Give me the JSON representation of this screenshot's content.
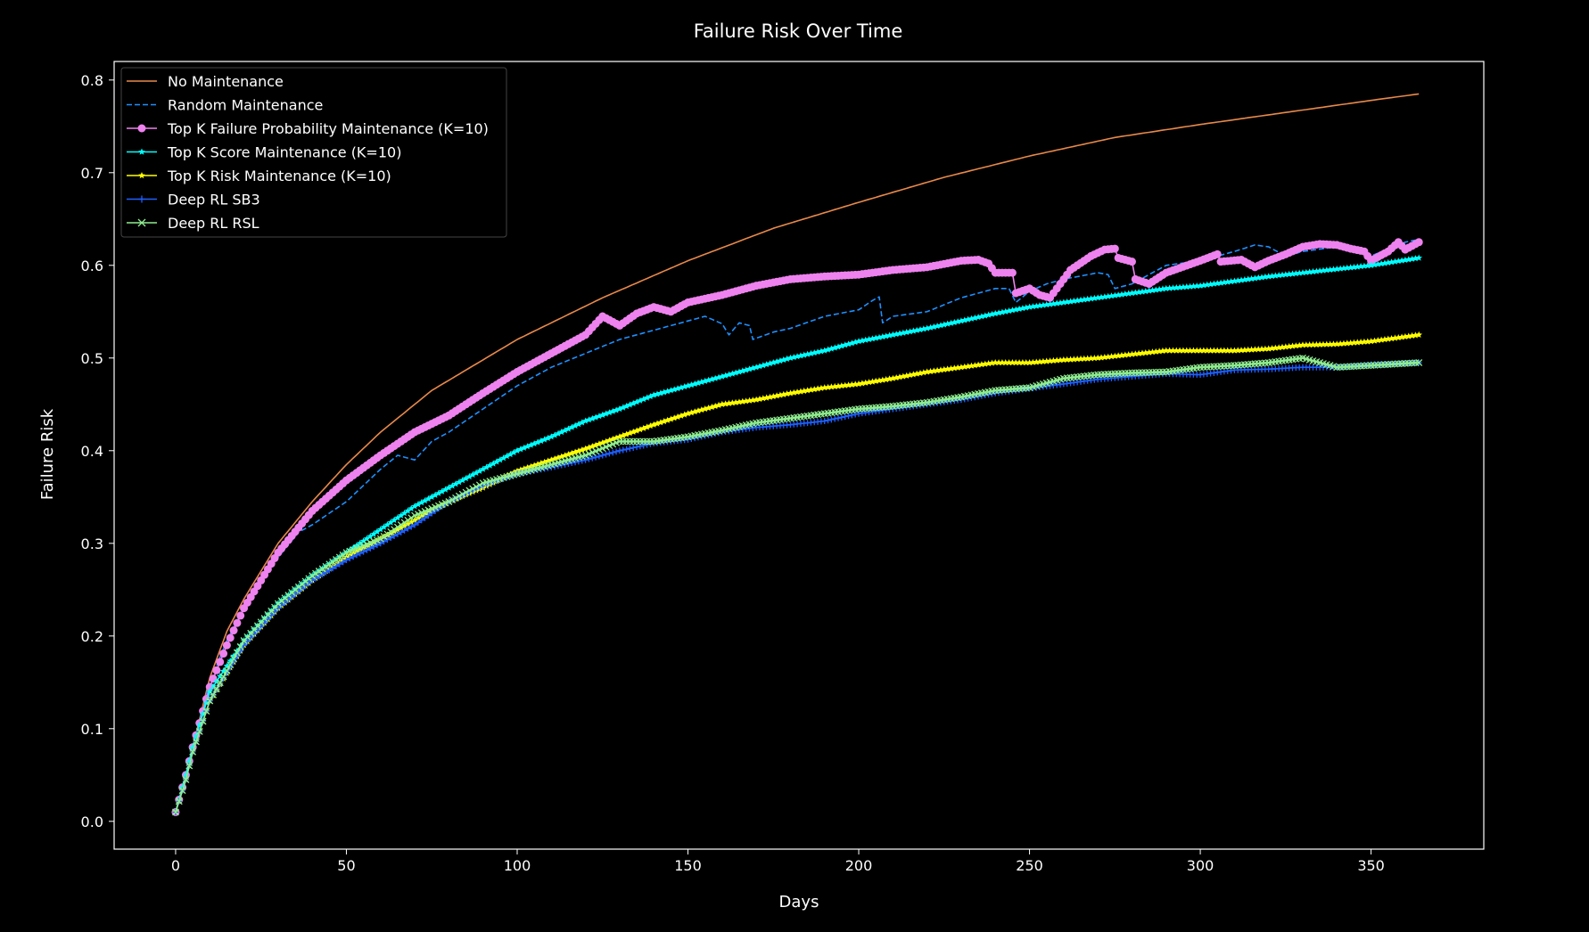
{
  "chart_data": {
    "type": "line",
    "title": "Failure Risk Over Time",
    "xlabel": "Days",
    "ylabel": "Failure Risk",
    "xlim": [
      -18,
      383
    ],
    "ylim": [
      -0.03,
      0.82
    ],
    "xticks": [
      0,
      50,
      100,
      150,
      200,
      250,
      300,
      350
    ],
    "yticks": [
      0.0,
      0.1,
      0.2,
      0.3,
      0.4,
      0.5,
      0.6,
      0.7,
      0.8
    ],
    "grid": false,
    "legend_position": "top-left",
    "background": "#000000",
    "series": [
      {
        "name": "No Maintenance",
        "color": "#e8894a",
        "style": "solid",
        "marker": "none",
        "points": [
          [
            0,
            0.01
          ],
          [
            3,
            0.05
          ],
          [
            5,
            0.08
          ],
          [
            10,
            0.155
          ],
          [
            15,
            0.205
          ],
          [
            20,
            0.24
          ],
          [
            30,
            0.3
          ],
          [
            40,
            0.345
          ],
          [
            50,
            0.385
          ],
          [
            60,
            0.42
          ],
          [
            75,
            0.465
          ],
          [
            100,
            0.52
          ],
          [
            125,
            0.565
          ],
          [
            150,
            0.605
          ],
          [
            175,
            0.64
          ],
          [
            200,
            0.668
          ],
          [
            225,
            0.695
          ],
          [
            250,
            0.718
          ],
          [
            275,
            0.738
          ],
          [
            300,
            0.752
          ],
          [
            325,
            0.765
          ],
          [
            350,
            0.778
          ],
          [
            364,
            0.785
          ]
        ]
      },
      {
        "name": "Random Maintenance",
        "color": "#1e90ff",
        "style": "dashed",
        "marker": "none",
        "points": [
          [
            0,
            0.01
          ],
          [
            3,
            0.05
          ],
          [
            5,
            0.08
          ],
          [
            10,
            0.15
          ],
          [
            15,
            0.195
          ],
          [
            20,
            0.23
          ],
          [
            30,
            0.285
          ],
          [
            36,
            0.312
          ],
          [
            40,
            0.32
          ],
          [
            50,
            0.345
          ],
          [
            60,
            0.38
          ],
          [
            65,
            0.395
          ],
          [
            70,
            0.39
          ],
          [
            75,
            0.41
          ],
          [
            80,
            0.42
          ],
          [
            90,
            0.445
          ],
          [
            100,
            0.47
          ],
          [
            110,
            0.49
          ],
          [
            120,
            0.505
          ],
          [
            130,
            0.52
          ],
          [
            140,
            0.53
          ],
          [
            150,
            0.54
          ],
          [
            155,
            0.545
          ],
          [
            160,
            0.537
          ],
          [
            162,
            0.525
          ],
          [
            165,
            0.538
          ],
          [
            168,
            0.535
          ],
          [
            169,
            0.52
          ],
          [
            175,
            0.528
          ],
          [
            180,
            0.532
          ],
          [
            190,
            0.545
          ],
          [
            200,
            0.552
          ],
          [
            204,
            0.562
          ],
          [
            206,
            0.566
          ],
          [
            207,
            0.538
          ],
          [
            210,
            0.545
          ],
          [
            220,
            0.55
          ],
          [
            230,
            0.565
          ],
          [
            240,
            0.575
          ],
          [
            244,
            0.575
          ],
          [
            246,
            0.56
          ],
          [
            250,
            0.572
          ],
          [
            255,
            0.58
          ],
          [
            260,
            0.585
          ],
          [
            270,
            0.592
          ],
          [
            273,
            0.59
          ],
          [
            275,
            0.575
          ],
          [
            280,
            0.58
          ],
          [
            285,
            0.59
          ],
          [
            290,
            0.6
          ],
          [
            300,
            0.605
          ],
          [
            310,
            0.615
          ],
          [
            316,
            0.622
          ],
          [
            320,
            0.62
          ],
          [
            325,
            0.61
          ],
          [
            330,
            0.615
          ],
          [
            340,
            0.62
          ],
          [
            345,
            0.615
          ],
          [
            350,
            0.61
          ],
          [
            355,
            0.618
          ],
          [
            360,
            0.625
          ],
          [
            364,
            0.628
          ]
        ]
      },
      {
        "name": "Top K Failure Probability Maintenance (K=10)",
        "color": "#ee82ee",
        "style": "solid",
        "marker": "circle",
        "points": [
          [
            0,
            0.01
          ],
          [
            3,
            0.05
          ],
          [
            5,
            0.08
          ],
          [
            10,
            0.145
          ],
          [
            15,
            0.19
          ],
          [
            20,
            0.23
          ],
          [
            30,
            0.29
          ],
          [
            40,
            0.335
          ],
          [
            50,
            0.368
          ],
          [
            60,
            0.395
          ],
          [
            70,
            0.42
          ],
          [
            80,
            0.438
          ],
          [
            90,
            0.462
          ],
          [
            100,
            0.485
          ],
          [
            110,
            0.505
          ],
          [
            120,
            0.525
          ],
          [
            125,
            0.545
          ],
          [
            130,
            0.535
          ],
          [
            135,
            0.548
          ],
          [
            140,
            0.555
          ],
          [
            145,
            0.55
          ],
          [
            150,
            0.56
          ],
          [
            160,
            0.568
          ],
          [
            170,
            0.578
          ],
          [
            180,
            0.585
          ],
          [
            190,
            0.588
          ],
          [
            200,
            0.59
          ],
          [
            210,
            0.595
          ],
          [
            220,
            0.598
          ],
          [
            230,
            0.605
          ],
          [
            235,
            0.606
          ],
          [
            238,
            0.602
          ],
          [
            240,
            0.592
          ],
          [
            245,
            0.592
          ],
          [
            246,
            0.57
          ],
          [
            250,
            0.575
          ],
          [
            253,
            0.568
          ],
          [
            256,
            0.565
          ],
          [
            258,
            0.575
          ],
          [
            262,
            0.595
          ],
          [
            268,
            0.61
          ],
          [
            272,
            0.617
          ],
          [
            275,
            0.618
          ],
          [
            276,
            0.608
          ],
          [
            280,
            0.604
          ],
          [
            281,
            0.585
          ],
          [
            285,
            0.58
          ],
          [
            290,
            0.592
          ],
          [
            300,
            0.605
          ],
          [
            305,
            0.612
          ],
          [
            306,
            0.604
          ],
          [
            312,
            0.606
          ],
          [
            316,
            0.598
          ],
          [
            320,
            0.605
          ],
          [
            325,
            0.612
          ],
          [
            330,
            0.62
          ],
          [
            335,
            0.623
          ],
          [
            340,
            0.622
          ],
          [
            344,
            0.618
          ],
          [
            348,
            0.615
          ],
          [
            350,
            0.605
          ],
          [
            355,
            0.615
          ],
          [
            358,
            0.625
          ],
          [
            360,
            0.617
          ],
          [
            364,
            0.625
          ]
        ]
      },
      {
        "name": "Top K Score Maintenance (K=10)",
        "color": "#00ffff",
        "style": "solid",
        "marker": "star",
        "points": [
          [
            0,
            0.01
          ],
          [
            3,
            0.05
          ],
          [
            5,
            0.08
          ],
          [
            10,
            0.14
          ],
          [
            20,
            0.195
          ],
          [
            30,
            0.235
          ],
          [
            40,
            0.265
          ],
          [
            50,
            0.29
          ],
          [
            60,
            0.315
          ],
          [
            70,
            0.34
          ],
          [
            80,
            0.36
          ],
          [
            90,
            0.38
          ],
          [
            100,
            0.4
          ],
          [
            110,
            0.415
          ],
          [
            120,
            0.432
          ],
          [
            130,
            0.445
          ],
          [
            140,
            0.46
          ],
          [
            150,
            0.47
          ],
          [
            160,
            0.48
          ],
          [
            170,
            0.49
          ],
          [
            180,
            0.5
          ],
          [
            190,
            0.508
          ],
          [
            200,
            0.518
          ],
          [
            210,
            0.525
          ],
          [
            220,
            0.532
          ],
          [
            230,
            0.54
          ],
          [
            240,
            0.548
          ],
          [
            250,
            0.555
          ],
          [
            260,
            0.56
          ],
          [
            270,
            0.565
          ],
          [
            280,
            0.57
          ],
          [
            290,
            0.575
          ],
          [
            300,
            0.578
          ],
          [
            310,
            0.583
          ],
          [
            320,
            0.588
          ],
          [
            330,
            0.592
          ],
          [
            340,
            0.596
          ],
          [
            350,
            0.6
          ],
          [
            364,
            0.608
          ]
        ]
      },
      {
        "name": "Top K Risk Maintenance (K=10)",
        "color": "#ffff00",
        "style": "solid",
        "marker": "star",
        "points": [
          [
            0,
            0.01
          ],
          [
            3,
            0.045
          ],
          [
            5,
            0.075
          ],
          [
            10,
            0.13
          ],
          [
            20,
            0.19
          ],
          [
            30,
            0.23
          ],
          [
            40,
            0.26
          ],
          [
            50,
            0.285
          ],
          [
            60,
            0.305
          ],
          [
            70,
            0.325
          ],
          [
            80,
            0.345
          ],
          [
            90,
            0.36
          ],
          [
            100,
            0.378
          ],
          [
            110,
            0.39
          ],
          [
            120,
            0.402
          ],
          [
            130,
            0.415
          ],
          [
            140,
            0.428
          ],
          [
            150,
            0.44
          ],
          [
            160,
            0.45
          ],
          [
            170,
            0.455
          ],
          [
            180,
            0.462
          ],
          [
            190,
            0.468
          ],
          [
            200,
            0.472
          ],
          [
            210,
            0.478
          ],
          [
            220,
            0.485
          ],
          [
            230,
            0.49
          ],
          [
            240,
            0.495
          ],
          [
            250,
            0.495
          ],
          [
            260,
            0.498
          ],
          [
            270,
            0.5
          ],
          [
            280,
            0.504
          ],
          [
            290,
            0.508
          ],
          [
            300,
            0.508
          ],
          [
            310,
            0.508
          ],
          [
            320,
            0.51
          ],
          [
            330,
            0.514
          ],
          [
            340,
            0.515
          ],
          [
            350,
            0.518
          ],
          [
            364,
            0.525
          ]
        ]
      },
      {
        "name": "Deep RL SB3",
        "color": "#1f5fff",
        "style": "solid",
        "marker": "plus",
        "points": [
          [
            0,
            0.01
          ],
          [
            3,
            0.045
          ],
          [
            5,
            0.075
          ],
          [
            10,
            0.13
          ],
          [
            20,
            0.19
          ],
          [
            30,
            0.23
          ],
          [
            40,
            0.26
          ],
          [
            50,
            0.282
          ],
          [
            60,
            0.3
          ],
          [
            70,
            0.32
          ],
          [
            80,
            0.345
          ],
          [
            90,
            0.362
          ],
          [
            100,
            0.375
          ],
          [
            110,
            0.382
          ],
          [
            120,
            0.39
          ],
          [
            130,
            0.4
          ],
          [
            140,
            0.408
          ],
          [
            150,
            0.412
          ],
          [
            160,
            0.42
          ],
          [
            170,
            0.425
          ],
          [
            180,
            0.428
          ],
          [
            190,
            0.432
          ],
          [
            200,
            0.44
          ],
          [
            210,
            0.445
          ],
          [
            220,
            0.45
          ],
          [
            230,
            0.455
          ],
          [
            240,
            0.462
          ],
          [
            250,
            0.467
          ],
          [
            260,
            0.472
          ],
          [
            270,
            0.477
          ],
          [
            280,
            0.48
          ],
          [
            290,
            0.483
          ],
          [
            300,
            0.482
          ],
          [
            310,
            0.487
          ],
          [
            320,
            0.488
          ],
          [
            330,
            0.49
          ],
          [
            340,
            0.49
          ],
          [
            350,
            0.493
          ],
          [
            364,
            0.495
          ]
        ]
      },
      {
        "name": "Deep RL RSL",
        "color": "#90ee90",
        "style": "solid",
        "marker": "x",
        "points": [
          [
            0,
            0.01
          ],
          [
            3,
            0.045
          ],
          [
            5,
            0.075
          ],
          [
            10,
            0.13
          ],
          [
            20,
            0.195
          ],
          [
            30,
            0.235
          ],
          [
            40,
            0.265
          ],
          [
            50,
            0.29
          ],
          [
            60,
            0.305
          ],
          [
            70,
            0.33
          ],
          [
            80,
            0.345
          ],
          [
            90,
            0.365
          ],
          [
            100,
            0.375
          ],
          [
            110,
            0.385
          ],
          [
            120,
            0.395
          ],
          [
            130,
            0.41
          ],
          [
            140,
            0.41
          ],
          [
            150,
            0.415
          ],
          [
            160,
            0.422
          ],
          [
            170,
            0.43
          ],
          [
            180,
            0.435
          ],
          [
            190,
            0.44
          ],
          [
            200,
            0.445
          ],
          [
            210,
            0.448
          ],
          [
            220,
            0.452
          ],
          [
            230,
            0.458
          ],
          [
            240,
            0.465
          ],
          [
            250,
            0.468
          ],
          [
            260,
            0.478
          ],
          [
            270,
            0.482
          ],
          [
            280,
            0.484
          ],
          [
            290,
            0.485
          ],
          [
            300,
            0.49
          ],
          [
            310,
            0.492
          ],
          [
            320,
            0.495
          ],
          [
            330,
            0.5
          ],
          [
            340,
            0.49
          ],
          [
            350,
            0.492
          ],
          [
            364,
            0.495
          ]
        ]
      }
    ]
  }
}
